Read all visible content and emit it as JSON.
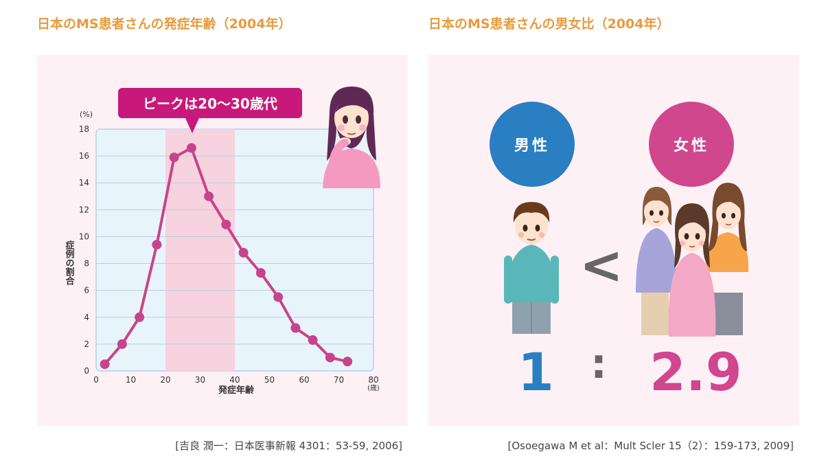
{
  "left": {
    "heading": "日本のMS患者さんの発症年齢（2004年）",
    "callout": "ピークは20～30歳代",
    "citation": "[吉良 潤一：日本医事新報 4301：53-59, 2006]"
  },
  "right": {
    "heading": "日本のMS患者さんの男女比（2004年）",
    "male_label": "男性",
    "female_label": "女性",
    "comparison_symbol": "<",
    "ratio_separator": ":",
    "male_ratio": "1",
    "female_ratio": "2.9",
    "citation": "[Osoegawa M et al：Mult Scler 15（2）：159-173, 2009]"
  },
  "colors": {
    "heading": "#e89a3c",
    "line": "#c8448a",
    "callout": "#c8187a",
    "male": "#2a7ec2",
    "female": "#d0478e",
    "highlight_band": "#f6d3df",
    "plot_bg": "#e8f4fb"
  },
  "chart_data": {
    "type": "line",
    "title": "日本のMS患者さんの発症年齢（2004年）",
    "xlabel": "発症年齢",
    "x_unit": "(歳)",
    "ylabel": "症例の割合",
    "y_unit": "(%)",
    "xlim": [
      0,
      80
    ],
    "ylim": [
      0,
      18
    ],
    "x_ticks": [
      0,
      10,
      20,
      30,
      40,
      50,
      60,
      70,
      80
    ],
    "y_ticks": [
      0,
      2,
      4,
      6,
      8,
      10,
      12,
      14,
      16,
      18
    ],
    "grid": true,
    "highlight_range": [
      20,
      40
    ],
    "x": [
      2.5,
      7.5,
      12.5,
      17.5,
      22.5,
      27.5,
      32.5,
      37.5,
      42.5,
      47.5,
      52.5,
      57.5,
      62.5,
      67.5,
      72.5
    ],
    "values": [
      0.5,
      2.0,
      4.0,
      9.4,
      15.9,
      16.6,
      13.0,
      10.9,
      8.8,
      7.3,
      5.5,
      3.2,
      2.3,
      1.0,
      0.7
    ]
  }
}
